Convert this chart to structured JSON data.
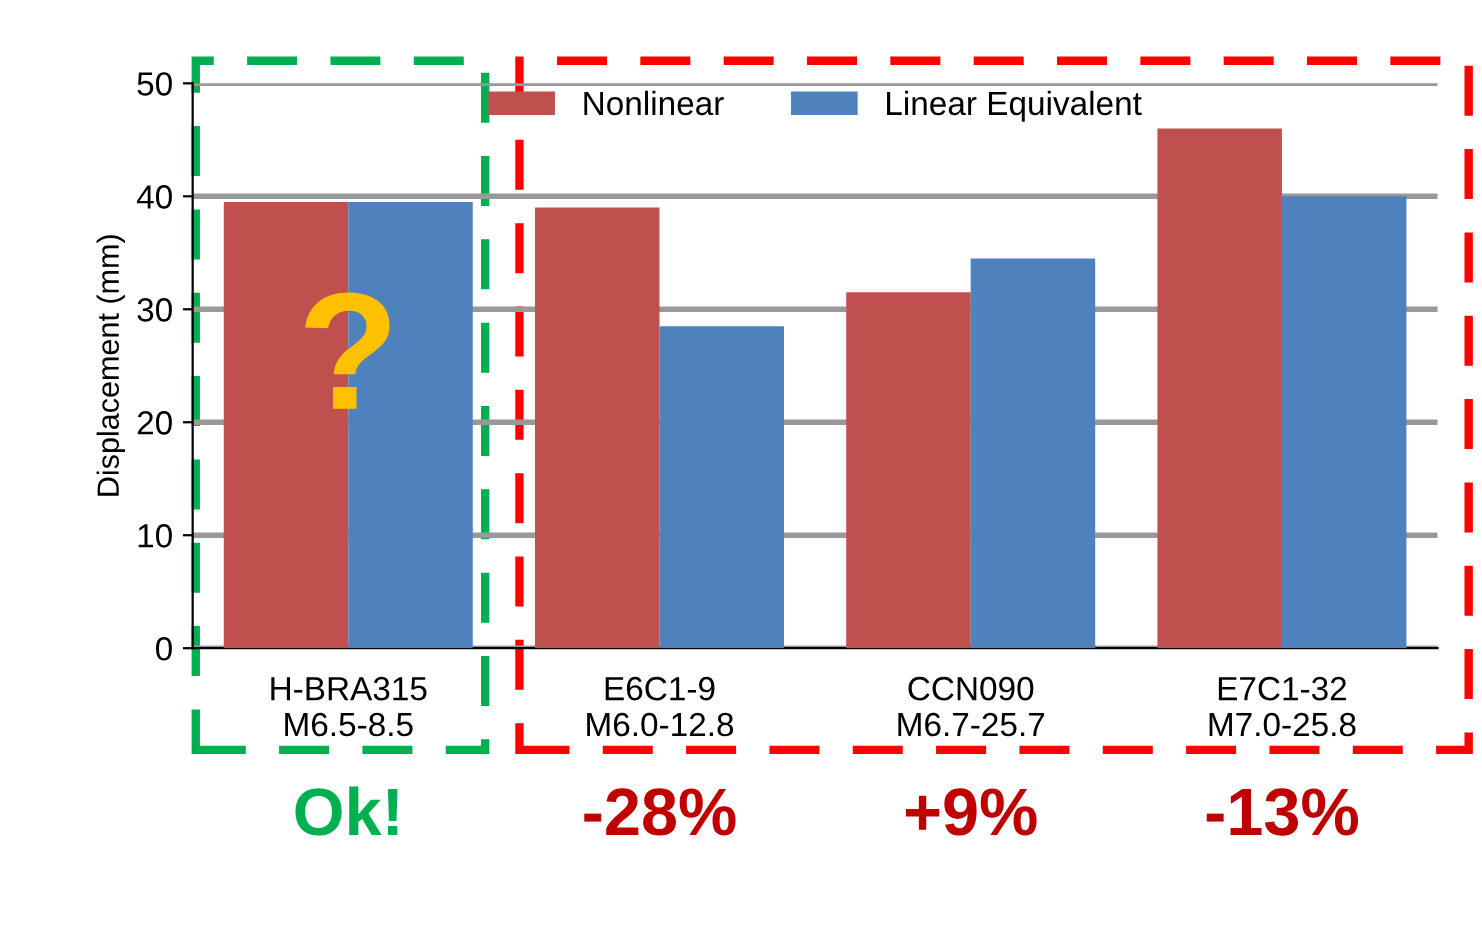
{
  "chart_data": {
    "type": "bar",
    "ylabel": "Displacement (mm)",
    "categories": [
      "H-BRA315\nM6.5-8.5",
      "E6C1-9\nM6.0-12.8",
      "CCN090\nM6.7-25.7",
      "E7C1-32\nM7.0-25.8"
    ],
    "series": [
      {
        "name": "Nonlinear",
        "color": "#c0504d",
        "values": [
          39.5,
          39,
          31.5,
          46
        ]
      },
      {
        "name": "Linear Equivalent",
        "color": "#4f81bd",
        "values": [
          39.5,
          28.5,
          34.5,
          40
        ]
      }
    ],
    "ylim": [
      0,
      50
    ],
    "yticks": [
      0,
      10,
      20,
      30,
      40,
      50
    ],
    "grid": "y",
    "legend": "top",
    "annotations": [
      "?",
      "Ok!",
      "-28%",
      "+9%",
      "-13%"
    ]
  }
}
